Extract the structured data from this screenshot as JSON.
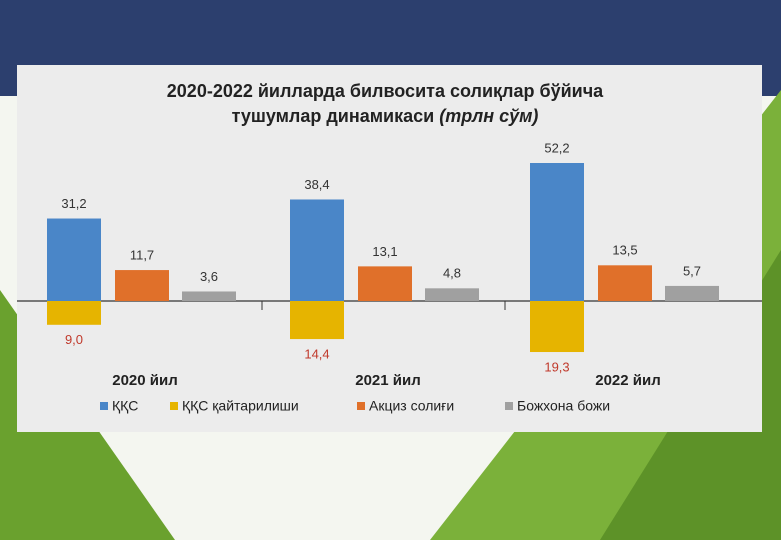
{
  "chart_data": {
    "type": "bar",
    "title": "2020-2022 йилларда билвосита солиқлар бўйича",
    "subtitle": "тушумлар динамикаси",
    "unit": "(трлн сўм)",
    "categories": [
      "2020 йил",
      "2021 йил",
      "2022 йил"
    ],
    "series": [
      {
        "name": "ҚҚС",
        "color": "#4a86c8",
        "values": [
          31.2,
          38.4,
          52.2
        ],
        "value_labels": [
          "31,2",
          "38,4",
          "52,2"
        ]
      },
      {
        "name": "ҚҚС қайтарилиши",
        "color": "#e6b400",
        "values": [
          -9.0,
          -14.4,
          -19.3
        ],
        "value_labels": [
          "9,0",
          "14,4",
          "19,3"
        ]
      },
      {
        "name": "Акциз солиғи",
        "color": "#e0702a",
        "values": [
          11.7,
          13.1,
          13.5
        ],
        "value_labels": [
          "11,7",
          "13,1",
          "13,5"
        ]
      },
      {
        "name": "Божхона божи",
        "color": "#a0a0a0",
        "values": [
          3.6,
          4.8,
          5.7
        ],
        "value_labels": [
          "3,6",
          "4,8",
          "5,7"
        ]
      }
    ]
  }
}
